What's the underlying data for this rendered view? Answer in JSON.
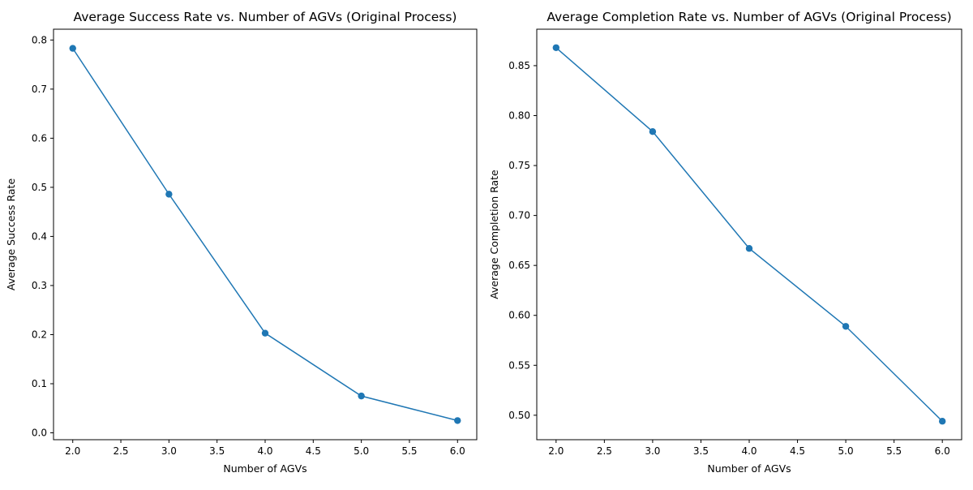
{
  "chart_data": [
    {
      "type": "line",
      "title": "Average Success Rate vs. Number of AGVs (Original Process)",
      "xlabel": "Number of AGVs",
      "ylabel": "Average Success Rate",
      "x": [
        2,
        3,
        4,
        5,
        6
      ],
      "series": [
        {
          "values": [
            0.783,
            0.486,
            0.203,
            0.075,
            0.025
          ]
        }
      ],
      "xlim": [
        1.8,
        6.2
      ],
      "ylim": [
        -0.014,
        0.822
      ],
      "xticks": [
        2.0,
        2.5,
        3.0,
        3.5,
        4.0,
        4.5,
        5.0,
        5.5,
        6.0
      ],
      "xtick_labels": [
        "2.0",
        "2.5",
        "3.0",
        "3.5",
        "4.0",
        "4.5",
        "5.0",
        "5.5",
        "6.0"
      ],
      "yticks": [
        0.0,
        0.1,
        0.2,
        0.3,
        0.4,
        0.5,
        0.6,
        0.7,
        0.8
      ],
      "ytick_labels": [
        "0.0",
        "0.1",
        "0.2",
        "0.3",
        "0.4",
        "0.5",
        "0.6",
        "0.7",
        "0.8"
      ],
      "grid": false,
      "line_color": "#1f77b4"
    },
    {
      "type": "line",
      "title": "Average Completion Rate vs. Number of AGVs (Original Process)",
      "xlabel": "Number of AGVs",
      "ylabel": "Average Completion Rate",
      "x": [
        2,
        3,
        4,
        5,
        6
      ],
      "series": [
        {
          "values": [
            0.868,
            0.784,
            0.667,
            0.589,
            0.494
          ]
        }
      ],
      "xlim": [
        1.8,
        6.2
      ],
      "ylim": [
        0.4755,
        0.8865
      ],
      "xticks": [
        2.0,
        2.5,
        3.0,
        3.5,
        4.0,
        4.5,
        5.0,
        5.5,
        6.0
      ],
      "xtick_labels": [
        "2.0",
        "2.5",
        "3.0",
        "3.5",
        "4.0",
        "4.5",
        "5.0",
        "5.5",
        "6.0"
      ],
      "yticks": [
        0.5,
        0.55,
        0.6,
        0.65,
        0.7,
        0.75,
        0.8,
        0.85
      ],
      "ytick_labels": [
        "0.50",
        "0.55",
        "0.60",
        "0.65",
        "0.70",
        "0.75",
        "0.80",
        "0.85"
      ],
      "grid": false,
      "line_color": "#1f77b4"
    }
  ]
}
